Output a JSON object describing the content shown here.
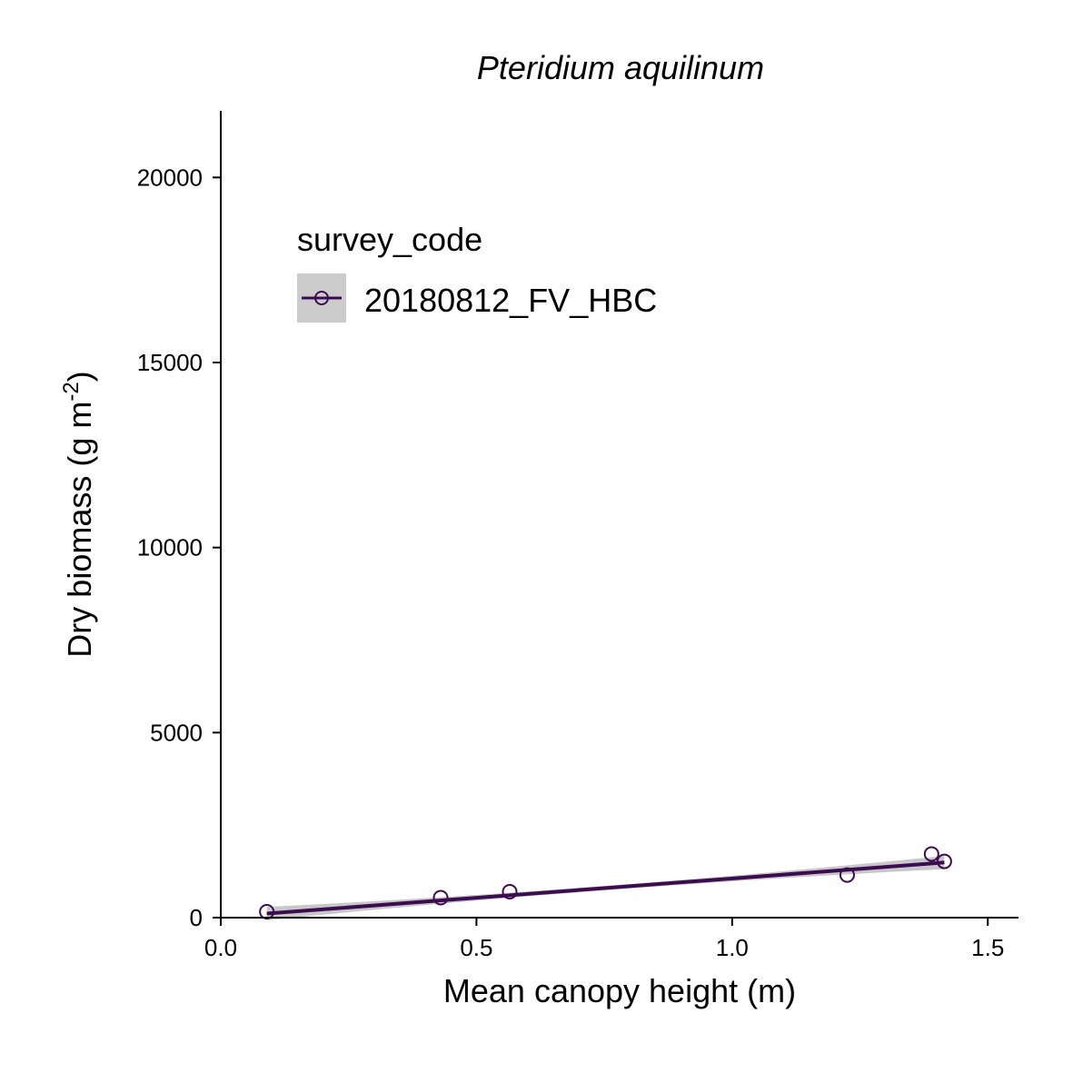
{
  "chart_data": {
    "type": "scatter",
    "title": "Pteridium aquilinum",
    "xlabel": "Mean canopy height (m)",
    "ylabel": "Dry biomass (g m",
    "ylabel_superscript": "-2",
    "ylabel_suffix": ")",
    "xlim": [
      0.0,
      1.56
    ],
    "ylim": [
      0,
      21800
    ],
    "x_ticks": [
      0.0,
      0.5,
      1.0,
      1.5
    ],
    "x_tick_labels": [
      "0.0",
      "0.5",
      "1.0",
      "1.5"
    ],
    "y_ticks": [
      0,
      5000,
      10000,
      15000,
      20000
    ],
    "y_tick_labels": [
      "0",
      "5000",
      "10000",
      "15000",
      "20000"
    ],
    "grid": false,
    "legend": {
      "title": "survey_code",
      "placement": "top-left"
    },
    "series": [
      {
        "name": "20180812_FV_HBC",
        "color": "#3d0b4f",
        "marker": "open-circle",
        "points": [
          {
            "x": 0.09,
            "y": 160
          },
          {
            "x": 0.43,
            "y": 540
          },
          {
            "x": 0.565,
            "y": 700
          },
          {
            "x": 1.225,
            "y": 1150
          },
          {
            "x": 1.39,
            "y": 1720
          },
          {
            "x": 1.415,
            "y": 1520
          }
        ],
        "fit": {
          "x_range": [
            0.09,
            1.415
          ],
          "y_range": [
            110,
            1490
          ],
          "ci_color": "#c8c8c8"
        }
      }
    ]
  }
}
